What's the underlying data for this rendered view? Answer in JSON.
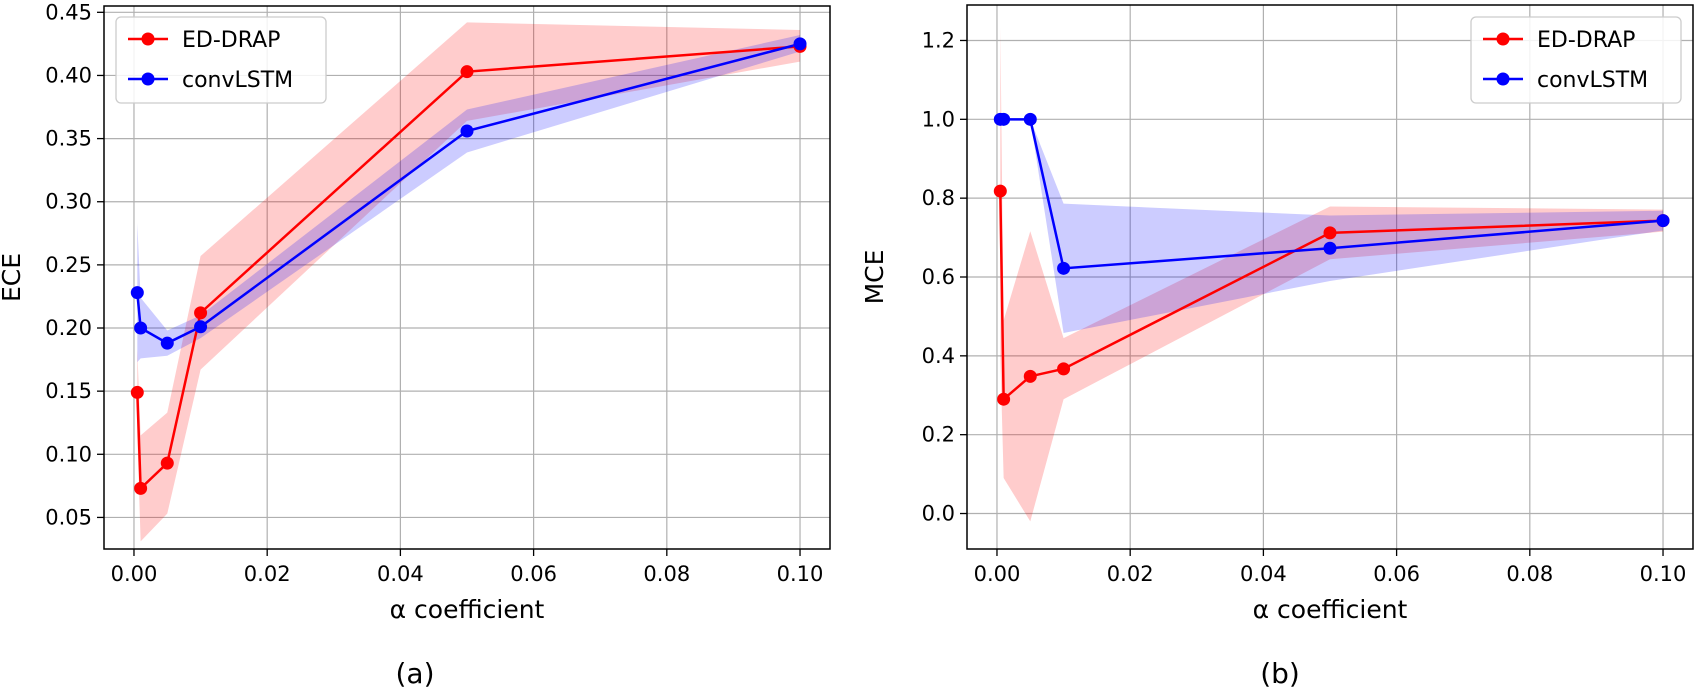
{
  "figure": {
    "panels": [
      {
        "id": "a",
        "panel_label": "(a)",
        "legend": [
          {
            "label": "ED-DRAP",
            "color": "#ff0000"
          },
          {
            "label": "convLSTM",
            "color": "#0000ff"
          }
        ]
      },
      {
        "id": "b",
        "panel_label": "(b)",
        "legend": [
          {
            "label": "ED-DRAP",
            "color": "#ff0000"
          },
          {
            "label": "convLSTM",
            "color": "#0000ff"
          }
        ]
      }
    ]
  },
  "chart_data": [
    {
      "type": "line",
      "title": "",
      "xlabel": "α coefficient",
      "ylabel": "ECE",
      "xlim": [
        -0.0045,
        0.1045
      ],
      "ylim": [
        0.025,
        0.455
      ],
      "xticks": [
        0.0,
        0.02,
        0.04,
        0.06,
        0.08,
        0.1
      ],
      "xtick_labels": [
        "0.00",
        "0.02",
        "0.04",
        "0.06",
        "0.08",
        "0.10"
      ],
      "yticks": [
        0.05,
        0.1,
        0.15,
        0.2,
        0.25,
        0.3,
        0.35,
        0.4,
        0.45
      ],
      "ytick_labels": [
        "0.05",
        "0.10",
        "0.15",
        "0.20",
        "0.25",
        "0.30",
        "0.35",
        "0.40",
        "0.45"
      ],
      "grid": true,
      "legend_position": "top-left",
      "series": [
        {
          "name": "ED-DRAP",
          "color": "#ff0000",
          "x": [
            0.0005,
            0.001,
            0.005,
            0.01,
            0.05,
            0.1
          ],
          "y": [
            0.149,
            0.073,
            0.093,
            0.212,
            0.403,
            0.423
          ],
          "lower": [
            0.115,
            0.031,
            0.053,
            0.167,
            0.364,
            0.411
          ],
          "upper": [
            0.183,
            0.115,
            0.133,
            0.257,
            0.442,
            0.436
          ]
        },
        {
          "name": "convLSTM",
          "color": "#0000ff",
          "x": [
            0.0005,
            0.001,
            0.005,
            0.01,
            0.05,
            0.1
          ],
          "y": [
            0.228,
            0.2,
            0.188,
            0.201,
            0.356,
            0.425
          ],
          "lower": [
            0.173,
            0.176,
            0.178,
            0.192,
            0.339,
            0.419
          ],
          "upper": [
            0.283,
            0.224,
            0.198,
            0.21,
            0.373,
            0.432
          ]
        }
      ]
    },
    {
      "type": "line",
      "title": "",
      "xlabel": "α coefficient",
      "ylabel": "MCE",
      "xlim": [
        -0.0045,
        0.1045
      ],
      "ylim": [
        -0.09,
        1.29
      ],
      "xticks": [
        0.0,
        0.02,
        0.04,
        0.06,
        0.08,
        0.1
      ],
      "xtick_labels": [
        "0.00",
        "0.02",
        "0.04",
        "0.06",
        "0.08",
        "0.10"
      ],
      "yticks": [
        0.0,
        0.2,
        0.4,
        0.6,
        0.8,
        1.0,
        1.2
      ],
      "ytick_labels": [
        "0.0",
        "0.2",
        "0.4",
        "0.6",
        "0.8",
        "1.0",
        "1.2"
      ],
      "grid": true,
      "legend_position": "top-right",
      "series": [
        {
          "name": "ED-DRAP",
          "color": "#ff0000",
          "x": [
            0.0005,
            0.001,
            0.005,
            0.01,
            0.05,
            0.1
          ],
          "y": [
            0.818,
            0.29,
            0.348,
            0.367,
            0.712,
            0.743
          ],
          "lower": [
            0.4,
            0.09,
            -0.02,
            0.29,
            0.645,
            0.715
          ],
          "upper": [
            1.235,
            0.49,
            0.716,
            0.445,
            0.779,
            0.771
          ]
        },
        {
          "name": "convLSTM",
          "color": "#0000ff",
          "x": [
            0.0005,
            0.001,
            0.005,
            0.01,
            0.05,
            0.1
          ],
          "y": [
            1.0,
            1.0,
            1.0,
            0.622,
            0.673,
            0.743
          ],
          "lower": [
            1.0,
            1.0,
            1.0,
            0.458,
            0.59,
            0.718
          ],
          "upper": [
            1.0,
            1.0,
            1.0,
            0.786,
            0.756,
            0.768
          ]
        }
      ]
    }
  ]
}
